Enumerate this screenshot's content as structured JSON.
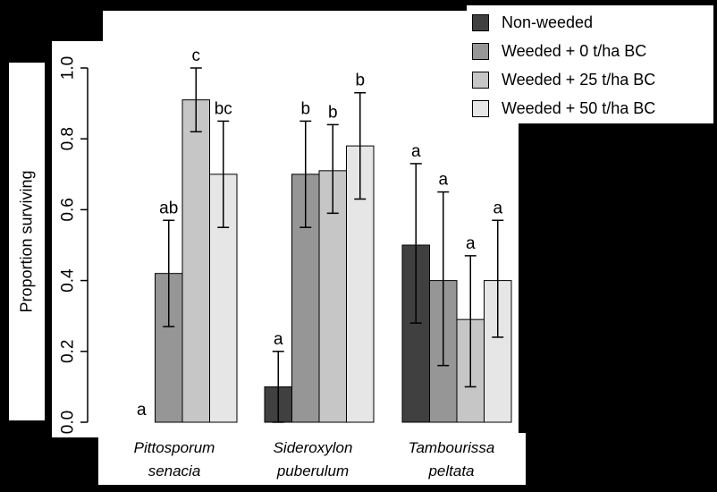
{
  "chart_data": {
    "type": "bar",
    "ylabel": "Proportion surviving",
    "ylim": [
      0,
      1.0
    ],
    "yticks": [
      "0.0",
      "0.2",
      "0.4",
      "0.6",
      "0.8",
      "1.0"
    ],
    "categories": [
      {
        "line1": "Pittosporum",
        "line2": "senacia"
      },
      {
        "line1": "Sideroxylon",
        "line2": "puberulum"
      },
      {
        "line1": "Tambourissa",
        "line2": "peltata"
      }
    ],
    "series": [
      {
        "name": "Non-weeded",
        "color": "#404040",
        "values": [
          0.0,
          0.1,
          0.5
        ],
        "err_low": [
          0.0,
          0.0,
          0.28
        ],
        "err_high": [
          0.0,
          0.2,
          0.73
        ],
        "letters": [
          "a",
          "a",
          "a"
        ]
      },
      {
        "name": "Weeded + 0 t/ha BC",
        "color": "#969696",
        "values": [
          0.42,
          0.7,
          0.4
        ],
        "err_low": [
          0.27,
          0.55,
          0.16
        ],
        "err_high": [
          0.57,
          0.85,
          0.65
        ],
        "letters": [
          "ab",
          "b",
          "a"
        ]
      },
      {
        "name": "Weeded + 25 t/ha BC",
        "color": "#c6c6c6",
        "values": [
          0.91,
          0.71,
          0.29
        ],
        "err_low": [
          0.82,
          0.59,
          0.1
        ],
        "err_high": [
          1.0,
          0.84,
          0.47
        ],
        "letters": [
          "c",
          "b",
          "a"
        ]
      },
      {
        "name": "Weeded + 50 t/ha BC",
        "color": "#e6e6e6",
        "values": [
          0.7,
          0.78,
          0.4
        ],
        "err_low": [
          0.55,
          0.63,
          0.24
        ],
        "err_high": [
          0.85,
          0.93,
          0.57
        ],
        "letters": [
          "bc",
          "b",
          "a"
        ]
      }
    ],
    "grid": false,
    "legend_position": "top-right"
  }
}
